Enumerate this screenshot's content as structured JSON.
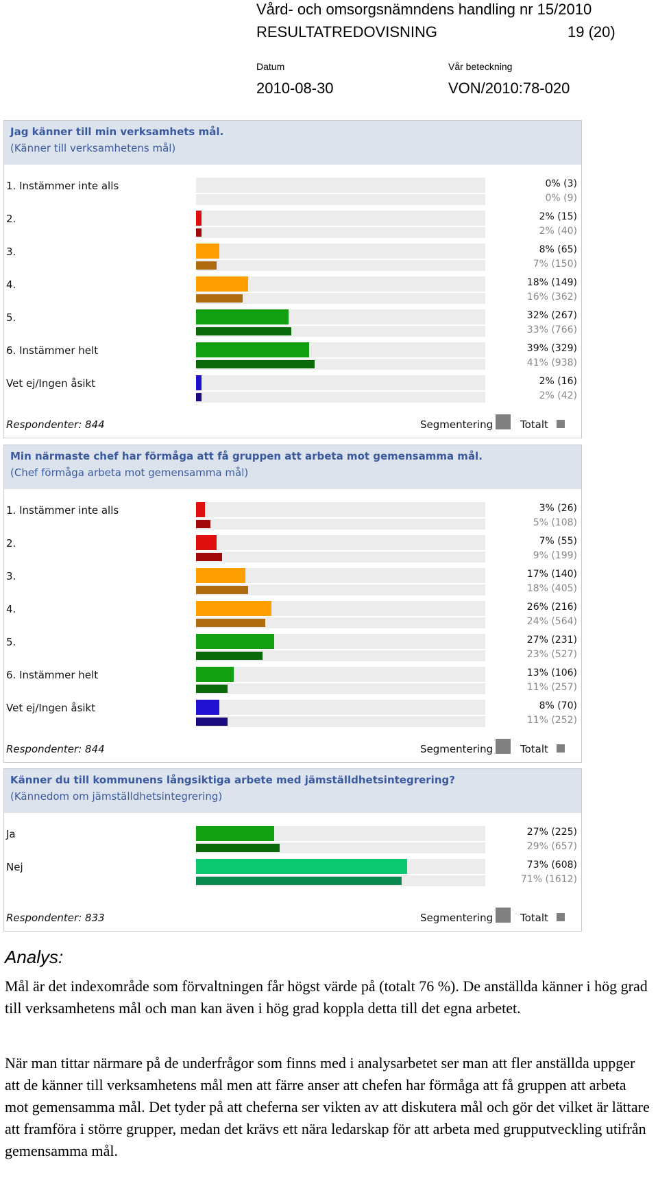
{
  "header": {
    "title": "Vård- och omsorgsnämndens handling nr 15/2010",
    "subtitle": "RESULTATREDOVISNING",
    "page": "19 (20)",
    "date_label": "Datum",
    "date_value": "2010-08-30",
    "ref_label": "Vår beteckning",
    "ref_value": "VON/2010:78-020"
  },
  "colors": {
    "red": "#e01010",
    "red_dark": "#a00a0a",
    "orange": "#ffa000",
    "orange_dark": "#b06a10",
    "green": "#12a012",
    "green_dark": "#0a6a0a",
    "blue": "#2010d0",
    "blue_dark": "#1a0a80",
    "teal": "#0cc870",
    "teal_dark": "#0a8a50",
    "header_bg": "#dde3ec",
    "title_text": "#3a5aa0"
  },
  "legend": {
    "segment": "Segmentering",
    "total": "Totalt"
  },
  "chart_data": [
    {
      "type": "bar",
      "title": "Jag känner till min verksamhets mål.",
      "subtitle": "(Känner till verksamhetens mål)",
      "respondents": "Respondenter: 844",
      "xlim": [
        0,
        100
      ],
      "categories": [
        "1. Instämmer inte alls",
        "2.",
        "3.",
        "4.",
        "5.",
        "6. Instämmer helt",
        "Vet ej/Ingen åsikt"
      ],
      "series": [
        {
          "name": "Segmentering",
          "values": [
            0,
            2,
            8,
            18,
            32,
            39,
            2
          ],
          "labels": [
            "0% (3)",
            "2% (15)",
            "8% (65)",
            "18% (149)",
            "32% (267)",
            "39% (329)",
            "2% (16)"
          ]
        },
        {
          "name": "Totalt",
          "values": [
            0,
            2,
            7,
            16,
            33,
            41,
            2
          ],
          "labels": [
            "0% (9)",
            "2% (40)",
            "7% (150)",
            "16% (362)",
            "33% (766)",
            "41% (938)",
            "2% (42)"
          ]
        }
      ],
      "bar_colors": [
        "red",
        "red",
        "orange",
        "orange",
        "green",
        "green",
        "blue"
      ]
    },
    {
      "type": "bar",
      "title": "Min närmaste chef har förmåga att få gruppen att arbeta mot gemensamma mål.",
      "subtitle": "(Chef förmåga arbeta mot gemensamma mål)",
      "respondents": "Respondenter: 844",
      "xlim": [
        0,
        100
      ],
      "categories": [
        "1. Instämmer inte alls",
        "2.",
        "3.",
        "4.",
        "5.",
        "6. Instämmer helt",
        "Vet ej/Ingen åsikt"
      ],
      "series": [
        {
          "name": "Segmentering",
          "values": [
            3,
            7,
            17,
            26,
            27,
            13,
            8
          ],
          "labels": [
            "3% (26)",
            "7% (55)",
            "17% (140)",
            "26% (216)",
            "27% (231)",
            "13% (106)",
            "8% (70)"
          ]
        },
        {
          "name": "Totalt",
          "values": [
            5,
            9,
            18,
            24,
            23,
            11,
            11
          ],
          "labels": [
            "5% (108)",
            "9% (199)",
            "18% (405)",
            "24% (564)",
            "23% (527)",
            "11% (257)",
            "11% (252)"
          ]
        }
      ],
      "bar_colors": [
        "red",
        "red",
        "orange",
        "orange",
        "green",
        "green",
        "blue"
      ]
    },
    {
      "type": "bar",
      "title": "Känner du till kommunens långsiktiga arbete med jämställdhetsintegrering?",
      "subtitle": "(Kännedom om jämställdhetsintegrering)",
      "respondents": "Respondenter: 833",
      "xlim": [
        0,
        100
      ],
      "categories": [
        "Ja",
        "Nej"
      ],
      "series": [
        {
          "name": "Segmentering",
          "values": [
            27,
            73
          ],
          "labels": [
            "27% (225)",
            "73% (608)"
          ]
        },
        {
          "name": "Totalt",
          "values": [
            29,
            71
          ],
          "labels": [
            "29% (657)",
            "71% (1612)"
          ]
        }
      ],
      "bar_colors": [
        "green",
        "teal"
      ]
    }
  ],
  "analysis": {
    "heading": "Analys:",
    "p1": "Mål är det indexområde som förvaltningen får högst värde på (totalt 76 %). De anställda känner i hög grad till verksamhetens mål och man kan även i hög grad koppla detta till det egna arbetet.",
    "p2": "När man tittar närmare på de underfrågor som finns med i analysarbetet ser man att fler anställda uppger att de känner till verksamhetens mål men att färre anser att chefen har förmåga att få gruppen att arbeta mot gemensamma mål. Det tyder på att cheferna ser vikten av att diskutera mål och gör det vilket är lättare att framföra i större grupper, medan det krävs ett nära ledarskap för att arbeta med grupputveckling utifrån gemensamma mål."
  }
}
